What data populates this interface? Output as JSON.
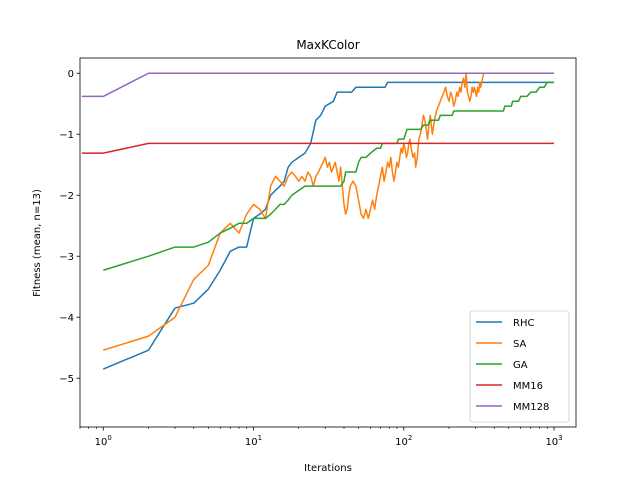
{
  "chart_data": {
    "type": "line",
    "title": "MaxKColor",
    "xlabel": "Iterations",
    "ylabel": "Fitness (mean, n=13)",
    "xscale": "log",
    "xlim": [
      0.7,
      1400
    ],
    "ylim": [
      -5.8,
      0.25
    ],
    "yticks": [
      0,
      -1,
      -2,
      -3,
      -4,
      -5
    ],
    "ytick_labels": [
      "0",
      "−1",
      "−2",
      "−3",
      "−4",
      "−5"
    ],
    "xticks": [
      {
        "value": 1,
        "base": "10",
        "exp": "0"
      },
      {
        "value": 10,
        "base": "10",
        "exp": "1"
      },
      {
        "value": 100,
        "base": "10",
        "exp": "2"
      },
      {
        "value": 1000,
        "base": "10",
        "exp": "3"
      }
    ],
    "grid": false,
    "legend_position": "lower-right",
    "series": [
      {
        "name": "RHC",
        "color": "#1f77b4",
        "points": [
          [
            1,
            -4.85
          ],
          [
            2,
            -4.54
          ],
          [
            3,
            -3.85
          ],
          [
            4,
            -3.77
          ],
          [
            5,
            -3.54
          ],
          [
            6,
            -3.23
          ],
          [
            7,
            -2.92
          ],
          [
            8,
            -2.85
          ],
          [
            9,
            -2.85
          ],
          [
            10,
            -2.38
          ],
          [
            11,
            -2.31
          ],
          [
            12,
            -2.23
          ],
          [
            13,
            -2.0
          ],
          [
            14,
            -1.92
          ],
          [
            15,
            -1.85
          ],
          [
            16,
            -1.77
          ],
          [
            17,
            -1.54
          ],
          [
            18,
            -1.46
          ],
          [
            20,
            -1.38
          ],
          [
            22,
            -1.31
          ],
          [
            24,
            -1.15
          ],
          [
            26,
            -0.77
          ],
          [
            28,
            -0.69
          ],
          [
            30,
            -0.54
          ],
          [
            34,
            -0.46
          ],
          [
            36,
            -0.31
          ],
          [
            45,
            -0.31
          ],
          [
            48,
            -0.23
          ],
          [
            75,
            -0.23
          ],
          [
            78,
            -0.15
          ],
          [
            1000,
            -0.15
          ]
        ]
      },
      {
        "name": "SA",
        "color": "#ff7f0e",
        "points": [
          [
            1,
            -4.54
          ],
          [
            2,
            -4.31
          ],
          [
            3,
            -4.0
          ],
          [
            4,
            -3.38
          ],
          [
            5,
            -3.15
          ],
          [
            6,
            -2.62
          ],
          [
            7,
            -2.46
          ],
          [
            8,
            -2.62
          ],
          [
            9,
            -2.31
          ],
          [
            10,
            -2.15
          ],
          [
            11,
            -2.23
          ],
          [
            12,
            -2.38
          ],
          [
            13,
            -1.85
          ],
          [
            14,
            -1.69
          ],
          [
            15,
            -1.77
          ],
          [
            16,
            -1.85
          ],
          [
            17,
            -1.69
          ],
          [
            18,
            -1.62
          ],
          [
            19,
            -1.69
          ],
          [
            20,
            -1.77
          ],
          [
            21,
            -1.69
          ],
          [
            22,
            -1.77
          ],
          [
            23,
            -1.62
          ],
          [
            24,
            -1.69
          ],
          [
            25,
            -1.85
          ],
          [
            26,
            -1.69
          ],
          [
            27,
            -1.62
          ],
          [
            28,
            -1.54
          ],
          [
            29,
            -1.46
          ],
          [
            30,
            -1.38
          ],
          [
            31,
            -1.54
          ],
          [
            32,
            -1.46
          ],
          [
            33,
            -1.62
          ],
          [
            34,
            -1.54
          ],
          [
            35,
            -1.46
          ],
          [
            36,
            -1.62
          ],
          [
            37,
            -1.77
          ],
          [
            38,
            -1.54
          ],
          [
            39,
            -1.85
          ],
          [
            40,
            -2.15
          ],
          [
            41,
            -2.31
          ],
          [
            42,
            -2.23
          ],
          [
            43,
            -2.0
          ],
          [
            44,
            -1.85
          ],
          [
            46,
            -1.77
          ],
          [
            48,
            -1.85
          ],
          [
            50,
            -2.08
          ],
          [
            52,
            -2.31
          ],
          [
            54,
            -2.38
          ],
          [
            56,
            -2.23
          ],
          [
            58,
            -2.38
          ],
          [
            60,
            -2.23
          ],
          [
            62,
            -2.08
          ],
          [
            64,
            -2.23
          ],
          [
            66,
            -2.0
          ],
          [
            68,
            -1.85
          ],
          [
            70,
            -1.69
          ],
          [
            72,
            -1.54
          ],
          [
            74,
            -1.77
          ],
          [
            76,
            -1.62
          ],
          [
            78,
            -1.46
          ],
          [
            80,
            -1.54
          ],
          [
            82,
            -1.38
          ],
          [
            84,
            -1.62
          ],
          [
            86,
            -1.77
          ],
          [
            88,
            -1.62
          ],
          [
            90,
            -1.46
          ],
          [
            92,
            -1.54
          ],
          [
            94,
            -1.38
          ],
          [
            96,
            -1.23
          ],
          [
            98,
            -1.31
          ],
          [
            100,
            -1.15
          ],
          [
            102,
            -1.23
          ],
          [
            104,
            -1.38
          ],
          [
            106,
            -1.31
          ],
          [
            108,
            -1.15
          ],
          [
            110,
            -1.08
          ],
          [
            112,
            -1.23
          ],
          [
            115,
            -1.38
          ],
          [
            118,
            -1.31
          ],
          [
            120,
            -1.54
          ],
          [
            123,
            -1.38
          ],
          [
            126,
            -1.08
          ],
          [
            129,
            -1.0
          ],
          [
            132,
            -0.85
          ],
          [
            135,
            -0.69
          ],
          [
            138,
            -0.77
          ],
          [
            141,
            -0.92
          ],
          [
            144,
            -1.08
          ],
          [
            147,
            -0.85
          ],
          [
            150,
            -0.69
          ],
          [
            155,
            -1.0
          ],
          [
            160,
            -0.77
          ],
          [
            165,
            -0.62
          ],
          [
            170,
            -0.54
          ],
          [
            175,
            -0.46
          ],
          [
            180,
            -0.38
          ],
          [
            185,
            -0.31
          ],
          [
            190,
            -0.23
          ],
          [
            195,
            -0.38
          ],
          [
            200,
            -0.46
          ],
          [
            205,
            -0.31
          ],
          [
            210,
            -0.38
          ],
          [
            215,
            -0.54
          ],
          [
            220,
            -0.46
          ],
          [
            225,
            -0.31
          ],
          [
            230,
            -0.38
          ],
          [
            235,
            -0.23
          ],
          [
            240,
            -0.31
          ],
          [
            245,
            -0.15
          ],
          [
            250,
            -0.08
          ],
          [
            255,
            -0.23
          ],
          [
            260,
            0.0
          ],
          [
            265,
            -0.31
          ],
          [
            270,
            -0.38
          ],
          [
            275,
            -0.46
          ],
          [
            280,
            -0.38
          ],
          [
            285,
            -0.23
          ],
          [
            290,
            -0.31
          ],
          [
            295,
            -0.23
          ],
          [
            300,
            -0.31
          ],
          [
            305,
            -0.38
          ],
          [
            310,
            -0.23
          ],
          [
            315,
            -0.31
          ],
          [
            320,
            -0.15
          ],
          [
            325,
            -0.23
          ],
          [
            330,
            -0.15
          ],
          [
            335,
            -0.08
          ],
          [
            340,
            0.0
          ]
        ]
      },
      {
        "name": "GA",
        "color": "#2ca02c",
        "points": [
          [
            1,
            -3.23
          ],
          [
            2,
            -3.0
          ],
          [
            3,
            -2.85
          ],
          [
            4,
            -2.85
          ],
          [
            5,
            -2.77
          ],
          [
            6,
            -2.62
          ],
          [
            7,
            -2.54
          ],
          [
            8,
            -2.46
          ],
          [
            9,
            -2.46
          ],
          [
            10,
            -2.38
          ],
          [
            12,
            -2.38
          ],
          [
            13,
            -2.31
          ],
          [
            14,
            -2.23
          ],
          [
            15,
            -2.15
          ],
          [
            16,
            -2.15
          ],
          [
            17,
            -2.08
          ],
          [
            18,
            -2.0
          ],
          [
            20,
            -1.92
          ],
          [
            22,
            -1.85
          ],
          [
            38,
            -1.85
          ],
          [
            40,
            -1.77
          ],
          [
            41,
            -1.62
          ],
          [
            48,
            -1.62
          ],
          [
            50,
            -1.46
          ],
          [
            52,
            -1.38
          ],
          [
            56,
            -1.38
          ],
          [
            60,
            -1.31
          ],
          [
            66,
            -1.23
          ],
          [
            70,
            -1.23
          ],
          [
            72,
            -1.15
          ],
          [
            90,
            -1.15
          ],
          [
            92,
            -1.08
          ],
          [
            100,
            -1.08
          ],
          [
            105,
            -0.92
          ],
          [
            130,
            -0.92
          ],
          [
            135,
            -0.85
          ],
          [
            145,
            -0.85
          ],
          [
            150,
            -0.77
          ],
          [
            170,
            -0.77
          ],
          [
            175,
            -0.69
          ],
          [
            210,
            -0.69
          ],
          [
            215,
            -0.62
          ],
          [
            460,
            -0.62
          ],
          [
            470,
            -0.54
          ],
          [
            520,
            -0.54
          ],
          [
            530,
            -0.46
          ],
          [
            580,
            -0.46
          ],
          [
            600,
            -0.38
          ],
          [
            660,
            -0.38
          ],
          [
            700,
            -0.31
          ],
          [
            760,
            -0.31
          ],
          [
            800,
            -0.23
          ],
          [
            860,
            -0.23
          ],
          [
            900,
            -0.15
          ],
          [
            1000,
            -0.15
          ]
        ]
      },
      {
        "name": "MM16",
        "color": "#d62728",
        "points": [
          [
            1,
            -1.31
          ],
          [
            2,
            -1.15
          ],
          [
            1000,
            -1.15
          ]
        ],
        "x_start_extra": 0.72
      },
      {
        "name": "MM128",
        "color": "#9467bd",
        "points": [
          [
            1,
            -0.38
          ],
          [
            2,
            0.0
          ],
          [
            1000,
            0.0
          ]
        ],
        "x_start_extra": 0.72
      }
    ]
  }
}
